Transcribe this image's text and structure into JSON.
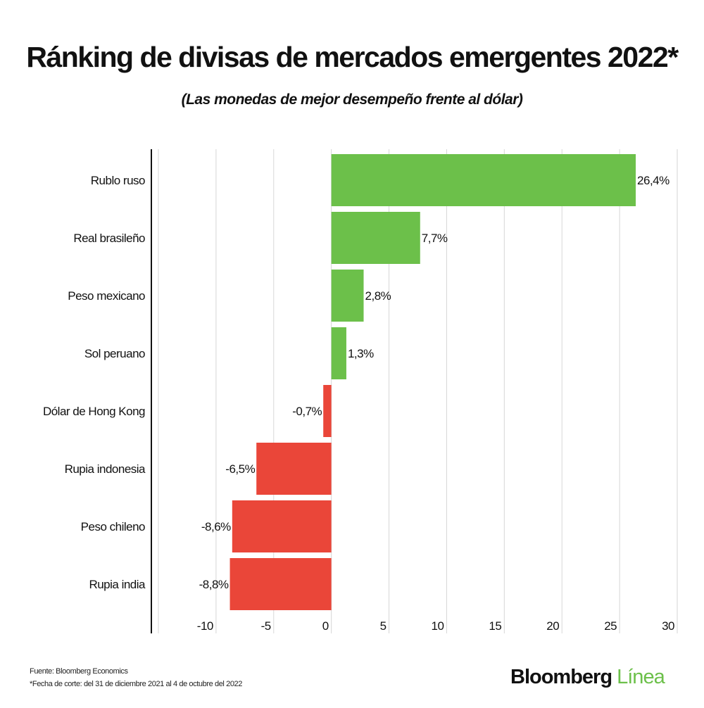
{
  "chart_data": {
    "type": "bar",
    "orientation": "horizontal",
    "title": "Ránking de divisas de mercados emergentes 2022*",
    "subtitle": "(Las monedas de mejor desempeño frente al dólar)",
    "categories": [
      "Rublo ruso",
      "Real brasileño",
      "Peso mexicano",
      "Sol peruano",
      "Dólar de Hong Kong",
      "Rupia indonesia",
      "Peso chileno",
      "Rupia india"
    ],
    "values": [
      26.4,
      7.7,
      2.8,
      1.3,
      -0.7,
      -6.5,
      -8.6,
      -8.8
    ],
    "data_labels": [
      "26,4%",
      "7,7%",
      "2,8%",
      "1,3%",
      "-0,7%",
      "-6,5%",
      "-8,6%",
      "-8,8%"
    ],
    "xlim": [
      -15,
      30
    ],
    "xticks": [
      -10,
      -5,
      0,
      5,
      10,
      15,
      20,
      25,
      30
    ],
    "xtick_labels": [
      "-10",
      "-5",
      "0",
      "5",
      "10",
      "15",
      "20",
      "25",
      "30"
    ],
    "grid": true,
    "colors": {
      "positive": "#6cc04a",
      "negative": "#ea4639"
    }
  },
  "footer": {
    "source": "Fuente: Bloomberg Economics",
    "note": "*Fecha de corte: del 31 de diciembre 2021 al 4 de octubre del 2022",
    "logo_main": "Bloomberg",
    "logo_accent": "Línea"
  }
}
